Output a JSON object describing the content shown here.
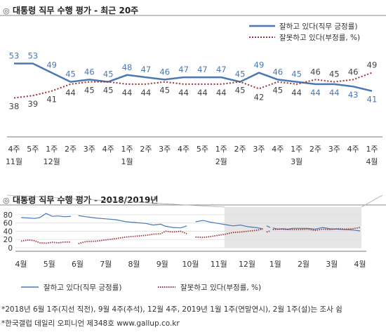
{
  "chart_data": [
    {
      "type": "line",
      "title": "대통령 직무 수행 평가 - 최근 20주",
      "title_mark": "◎",
      "categories": [
        "4주",
        "5주",
        "1주",
        "2주",
        "3주",
        "4주",
        "1주",
        "2주",
        "3주",
        "4주",
        "5주",
        "1주",
        "2주",
        "3주",
        "4주",
        "1주",
        "2주",
        "3주",
        "4주",
        "1주"
      ],
      "month_labels": [
        {
          "index": 0,
          "label": "11월"
        },
        {
          "index": 2,
          "label": "12월"
        },
        {
          "index": 6,
          "label": "1월"
        },
        {
          "index": 11,
          "label": "2월"
        },
        {
          "index": 15,
          "label": "3월"
        },
        {
          "index": 19,
          "label": "4월"
        }
      ],
      "series": [
        {
          "name": "잘하고 있다(직무 긍정률)",
          "color": "#4a78b5",
          "style": "solid",
          "values": [
            53,
            53,
            49,
            45,
            46,
            45,
            48,
            47,
            46,
            47,
            47,
            47,
            45,
            49,
            46,
            45,
            44,
            44,
            43,
            41
          ]
        },
        {
          "name": "잘못하고 있다(부정률, %)",
          "color": "#a0303a",
          "style": "dotted",
          "values": [
            38,
            39,
            41,
            44,
            45,
            45,
            44,
            44,
            45,
            44,
            44,
            44,
            45,
            42,
            45,
            44,
            46,
            45,
            46,
            49
          ]
        }
      ],
      "legend_position": "top-right"
    },
    {
      "type": "line",
      "title": "대통령 직무 수행 평가 - 2018/2019년",
      "title_mark": "◎",
      "yticks": [
        0,
        20,
        40,
        60,
        80
      ],
      "ylim": [
        0,
        90
      ],
      "months": [
        "4월",
        "5월",
        "6월",
        "7월",
        "8월",
        "9월",
        "10월",
        "11월",
        "12월",
        "1월",
        "2월",
        "3월",
        "4월"
      ],
      "highlight_from_month": "11월",
      "series": [
        {
          "name": "잘하고 있다(직무 긍정률)",
          "color": "#4a78b5",
          "style": "solid",
          "segments": [
            [
              [
                0,
                73
              ],
              [
                0.3,
                72
              ],
              [
                0.55,
                71
              ],
              [
                0.75,
                73
              ],
              [
                1.0,
                83
              ],
              [
                1.25,
                76
              ],
              [
                1.5,
                77
              ],
              [
                1.75,
                75
              ],
              [
                2.0,
                76
              ]
            ],
            [
              [
                2.3,
                78
              ],
              [
                2.6,
                75
              ],
              [
                3.0,
                72
              ],
              [
                3.4,
                70
              ],
              [
                3.8,
                68
              ],
              [
                4.2,
                63
              ],
              [
                4.6,
                61
              ],
              [
                5.0,
                59
              ],
              [
                5.3,
                55
              ],
              [
                5.6,
                57
              ],
              [
                5.8,
                52
              ],
              [
                6.1,
                49
              ],
              [
                6.4,
                48
              ],
              [
                6.65,
                53
              ]
            ],
            [
              [
                7.0,
                63
              ],
              [
                7.3,
                66
              ],
              [
                7.6,
                62
              ],
              [
                7.9,
                59
              ],
              [
                8.2,
                56
              ],
              [
                8.5,
                53
              ],
              [
                8.8,
                55
              ],
              [
                9.1,
                51
              ],
              [
                9.4,
                49
              ],
              [
                9.7,
                46
              ]
            ],
            [
              [
                9.85,
                53
              ],
              [
                10.0,
                49
              ]
            ],
            [
              [
                10.1,
                48
              ],
              [
                10.3,
                45
              ],
              [
                10.5,
                46
              ],
              [
                10.7,
                45
              ],
              [
                10.9,
                47
              ],
              [
                11.2,
                47
              ],
              [
                11.5,
                47
              ],
              [
                11.8,
                45
              ],
              [
                12.1,
                49
              ],
              [
                12.4,
                46
              ],
              [
                12.7,
                45
              ],
              [
                13.0,
                44
              ],
              [
                13.3,
                43
              ],
              [
                13.6,
                41
              ]
            ]
          ]
        },
        {
          "name": "잘못하고 있다(부정률, %)",
          "color": "#a0303a",
          "style": "dotted",
          "segments": [
            [
              [
                0,
                16
              ],
              [
                0.3,
                19
              ],
              [
                0.55,
                17
              ],
              [
                0.75,
                12
              ],
              [
                1.0,
                11
              ],
              [
                1.25,
                13
              ],
              [
                1.5,
                12
              ],
              [
                1.75,
                14
              ],
              [
                2.0,
                14
              ]
            ],
            [
              [
                2.3,
                10
              ],
              [
                2.6,
                15
              ],
              [
                3.0,
                16
              ],
              [
                3.4,
                19
              ],
              [
                3.8,
                22
              ],
              [
                4.2,
                26
              ],
              [
                4.6,
                28
              ],
              [
                5.0,
                30
              ],
              [
                5.3,
                33
              ],
              [
                5.6,
                34
              ],
              [
                5.8,
                40
              ],
              [
                6.1,
                38
              ],
              [
                6.4,
                40
              ],
              [
                6.65,
                34
              ]
            ],
            [
              [
                7.0,
                26
              ],
              [
                7.3,
                25
              ],
              [
                7.6,
                27
              ],
              [
                7.9,
                30
              ],
              [
                8.2,
                33
              ],
              [
                8.5,
                37
              ],
              [
                8.8,
                38
              ],
              [
                9.1,
                40
              ],
              [
                9.4,
                42
              ],
              [
                9.7,
                45
              ]
            ],
            [
              [
                9.85,
                38
              ],
              [
                10.0,
                41
              ]
            ],
            [
              [
                10.1,
                44
              ],
              [
                10.3,
                45
              ],
              [
                10.5,
                45
              ],
              [
                10.7,
                44
              ],
              [
                10.9,
                44
              ],
              [
                11.2,
                44
              ],
              [
                11.5,
                45
              ],
              [
                11.8,
                42
              ],
              [
                12.1,
                45
              ],
              [
                12.4,
                44
              ],
              [
                12.7,
                46
              ],
              [
                13.0,
                45
              ],
              [
                13.3,
                46
              ],
              [
                13.6,
                49
              ]
            ]
          ]
        }
      ],
      "legend_position": "bottom"
    }
  ],
  "footnotes": [
    "*2018년 6월 1주(지선 직전), 9월 4주(추석), 12월 4주, 2019년 1월 1주(연말연시), 2월 1주(설)는 조사 쉼",
    "*한국갤럽 데일리 오피니언 제348호 www.gallup.co.kr"
  ]
}
